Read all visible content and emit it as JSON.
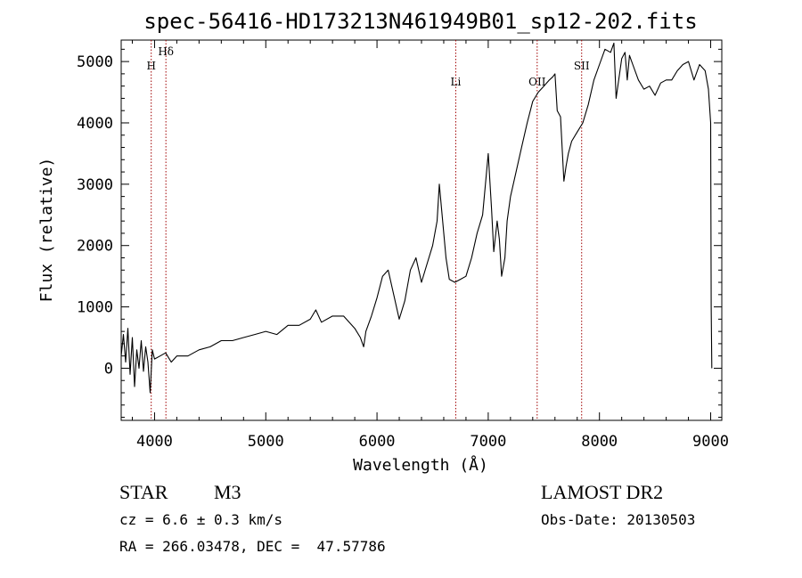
{
  "chart_data": {
    "type": "line",
    "title": "spec-56416-HD173213N461949B01_sp12-202.fits",
    "xlabel": "Wavelength (Å)",
    "ylabel": "Flux (relative)",
    "xlim": [
      3700,
      9100
    ],
    "ylim": [
      -850,
      5350
    ],
    "xticks": [
      4000,
      5000,
      6000,
      7000,
      8000,
      9000
    ],
    "yticks": [
      0,
      1000,
      2000,
      3000,
      4000,
      5000
    ],
    "grid": false,
    "series": [
      {
        "color": "#000000",
        "x": [
          3700,
          3720,
          3740,
          3760,
          3780,
          3800,
          3820,
          3840,
          3860,
          3880,
          3900,
          3920,
          3940,
          3960,
          3980,
          4000,
          4050,
          4100,
          4150,
          4200,
          4300,
          4400,
          4500,
          4600,
          4700,
          4800,
          4900,
          5000,
          5100,
          5200,
          5300,
          5400,
          5450,
          5500,
          5600,
          5700,
          5800,
          5850,
          5880,
          5900,
          5950,
          6000,
          6050,
          6100,
          6150,
          6200,
          6250,
          6300,
          6350,
          6400,
          6450,
          6500,
          6540,
          6560,
          6580,
          6600,
          6620,
          6650,
          6700,
          6750,
          6800,
          6850,
          6900,
          6950,
          7000,
          7030,
          7050,
          7080,
          7100,
          7120,
          7150,
          7170,
          7200,
          7250,
          7300,
          7350,
          7400,
          7450,
          7500,
          7550,
          7580,
          7600,
          7620,
          7650,
          7680,
          7700,
          7720,
          7750,
          7800,
          7850,
          7900,
          7950,
          8000,
          8050,
          8100,
          8130,
          8150,
          8200,
          8230,
          8250,
          8270,
          8300,
          8350,
          8400,
          8450,
          8500,
          8550,
          8600,
          8650,
          8700,
          8750,
          8800,
          8850,
          8900,
          8950,
          8980,
          9000,
          9005,
          9010
        ],
        "y": [
          200,
          550,
          100,
          650,
          -100,
          500,
          -300,
          300,
          0,
          450,
          -50,
          350,
          100,
          -400,
          300,
          150,
          200,
          250,
          100,
          200,
          200,
          300,
          350,
          450,
          450,
          500,
          550,
          600,
          550,
          700,
          700,
          800,
          950,
          750,
          850,
          850,
          650,
          500,
          350,
          600,
          850,
          1150,
          1500,
          1600,
          1200,
          800,
          1100,
          1600,
          1800,
          1400,
          1700,
          2000,
          2400,
          3000,
          2600,
          2200,
          1800,
          1450,
          1400,
          1450,
          1500,
          1800,
          2200,
          2500,
          3500,
          2600,
          1900,
          2400,
          2100,
          1500,
          1800,
          2400,
          2800,
          3200,
          3600,
          4000,
          4350,
          4500,
          4600,
          4700,
          4750,
          4800,
          4200,
          4100,
          3050,
          3300,
          3500,
          3700,
          3850,
          4000,
          4300,
          4700,
          4950,
          5200,
          5150,
          5300,
          4400,
          5050,
          5150,
          4700,
          5100,
          4950,
          4700,
          4550,
          4600,
          4450,
          4650,
          4700,
          4700,
          4850,
          4950,
          5000,
          4700,
          4950,
          4850,
          4550,
          4000,
          1000,
          0
        ]
      }
    ],
    "annotations": [
      {
        "label": "H",
        "x": 3970
      },
      {
        "label": "Hδ",
        "x": 4102
      },
      {
        "label": "Li",
        "x": 6708
      },
      {
        "label": "OII",
        "x": 7440
      },
      {
        "label": "SII",
        "x": 7840
      }
    ]
  },
  "info": {
    "object_type": "STAR",
    "subclass": "M3",
    "cz": "cz = 6.6 ± 0.3 km/s",
    "coords": "RA = 266.03478, DEC =  47.57786",
    "survey": "LAMOST DR2",
    "obs_date": "Obs-Date: 20130503"
  }
}
